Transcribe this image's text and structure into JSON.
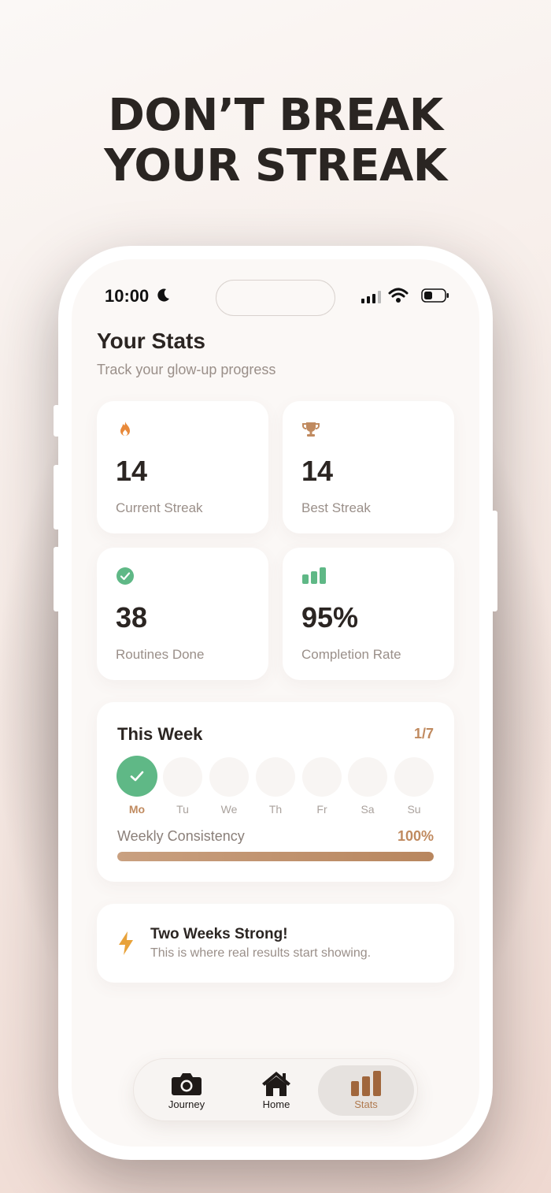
{
  "headline": {
    "line1": "DON’T BREAK",
    "line2": "YOUR STREAK"
  },
  "status_bar": {
    "time": "10:00"
  },
  "header": {
    "title": "Your Stats",
    "subtitle": "Track your glow-up progress"
  },
  "stats": [
    {
      "value": "14",
      "label": "Current Streak",
      "icon": "flame-icon",
      "color": "#e8893a"
    },
    {
      "value": "14",
      "label": "Best Streak",
      "icon": "trophy-icon",
      "color": "#c08a5f"
    },
    {
      "value": "38",
      "label": "Routines Done",
      "icon": "check-circle-icon",
      "color": "#5fb886"
    },
    {
      "value": "95%",
      "label": "Completion Rate",
      "icon": "bar-chart-icon",
      "color": "#5fb886"
    }
  ],
  "week": {
    "title": "This Week",
    "count": "1/7",
    "days": [
      {
        "label": "Mo",
        "done": true
      },
      {
        "label": "Tu",
        "done": false
      },
      {
        "label": "We",
        "done": false
      },
      {
        "label": "Th",
        "done": false
      },
      {
        "label": "Fr",
        "done": false
      },
      {
        "label": "Sa",
        "done": false
      },
      {
        "label": "Su",
        "done": false
      }
    ],
    "consistency_label": "Weekly Consistency",
    "consistency_value": "100%",
    "consistency_fraction": 1.0
  },
  "message": {
    "title": "Two Weeks Strong!",
    "subtitle": "This is where real results start showing.",
    "icon": "bolt-icon"
  },
  "tabs": [
    {
      "label": "Journey",
      "icon": "camera-icon",
      "active": false
    },
    {
      "label": "Home",
      "icon": "home-icon",
      "active": false
    },
    {
      "label": "Stats",
      "icon": "bar-chart-icon",
      "active": true
    }
  ],
  "colors": {
    "accent": "#c08a5f",
    "success": "#5fb886",
    "flame": "#e8893a"
  }
}
